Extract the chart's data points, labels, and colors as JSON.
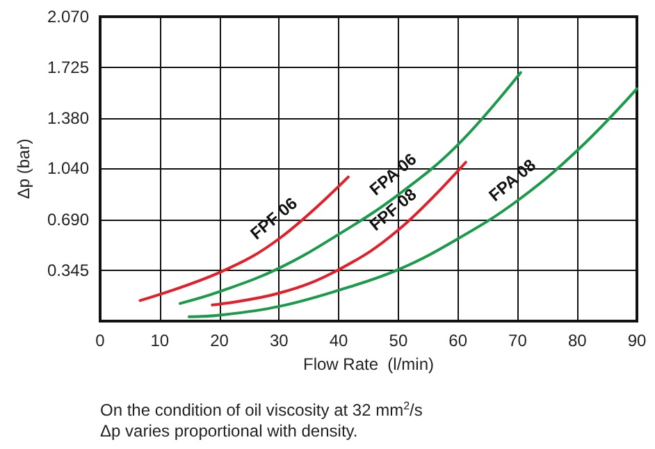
{
  "chart_data": {
    "type": "line",
    "xlabel": "Flow Rate  (l/min)",
    "ylabel": "Δp (bar)",
    "xlim": [
      0,
      90
    ],
    "xticks": [
      0,
      10,
      20,
      30,
      40,
      50,
      60,
      70,
      80,
      90
    ],
    "ylim": [
      0,
      2.07
    ],
    "yticks": [
      0.345,
      {
        "value": 0.69,
        "label": "0.690"
      },
      {
        "value": 1.04,
        "label": "1.040"
      },
      {
        "value": 1.38,
        "label": "1.380"
      },
      1.725,
      {
        "value": 2.07,
        "label": "2.070"
      }
    ],
    "grid": true,
    "legend": false,
    "marker": "none",
    "line_style": "solid",
    "series": [
      {
        "name": "FPF 06",
        "color": "#e0202a",
        "x": [
          6.7,
          20,
          30,
          41.6
        ],
        "values": [
          0.14,
          0.33,
          0.56,
          0.98
        ]
      },
      {
        "name": "FPA 06",
        "color": "#1a9a4a",
        "x": [
          13.4,
          20,
          30,
          40,
          50,
          60,
          70.5
        ],
        "values": [
          0.12,
          0.2,
          0.36,
          0.59,
          0.86,
          1.2,
          1.69
        ]
      },
      {
        "name": "FPF 08",
        "color": "#e0202a",
        "x": [
          18.8,
          30,
          40,
          50,
          61.3
        ],
        "values": [
          0.11,
          0.19,
          0.35,
          0.62,
          1.08
        ]
      },
      {
        "name": "FPA 08",
        "color": "#1a9a4a",
        "x": [
          14.9,
          20,
          30,
          40,
          50,
          60,
          70,
          80,
          90
        ],
        "values": [
          0.03,
          0.04,
          0.1,
          0.21,
          0.35,
          0.56,
          0.82,
          1.16,
          1.58
        ]
      }
    ],
    "annotations": [
      "On the condition of oil viscosity at 32 mm$^{2}$/s",
      "Δp varies proportional with density."
    ]
  }
}
